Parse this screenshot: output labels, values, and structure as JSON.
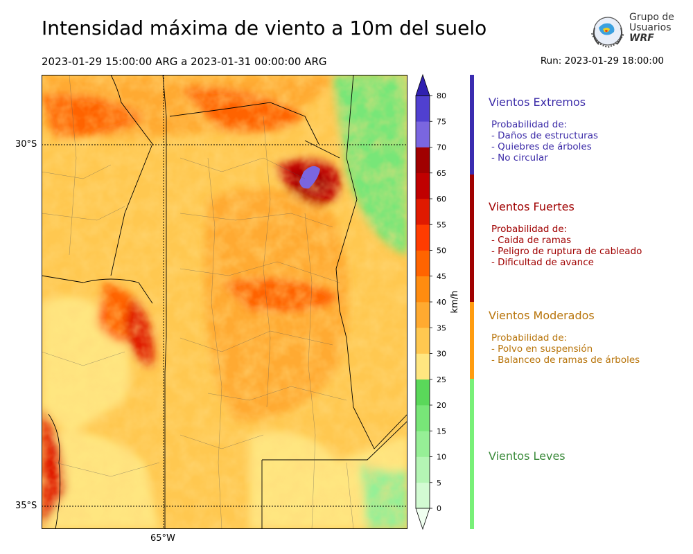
{
  "header": {
    "title": "Intensidad máxima de viento a 10m del suelo",
    "period": "2023-01-29 15:00:00 ARG  a  2023-01-31 00:00:00 ARG",
    "run": "Run: 2023-01-29 18:00:00"
  },
  "logo": {
    "line1": "Grupo de",
    "line2": "Usuarios",
    "line3": "WRF"
  },
  "axes": {
    "lat_labels": [
      "30°S",
      "35°S"
    ],
    "lon_labels": [
      "65°W"
    ]
  },
  "colorbar": {
    "unit": "km/h",
    "ticks": [
      "0",
      "5",
      "10",
      "15",
      "20",
      "25",
      "30",
      "35",
      "40",
      "45",
      "50",
      "55",
      "60",
      "65",
      "70",
      "75",
      "80"
    ],
    "colors": [
      "#f0fff0",
      "#d2fbd2",
      "#b4f5b4",
      "#96ef96",
      "#78e678",
      "#5ad85a",
      "#ffe680",
      "#ffc850",
      "#ffaa30",
      "#ff8c10",
      "#ff6400",
      "#ff3c00",
      "#e01a00",
      "#c00000",
      "#a00000",
      "#7a66e0",
      "#5040d0",
      "#3020b0"
    ]
  },
  "categories": [
    {
      "title": "Vientos Extremos",
      "color": "#3c2ca8",
      "desc": "Probabilidad de:\n- Daños de estructuras\n- Quiebres de árboles\n- No circular"
    },
    {
      "title": "Vientos Fuertes",
      "color": "#a00000",
      "desc": "Probabilidad de:\n- Caida de ramas\n- Peligro de ruptura de cableado\n- Dificultad de avance"
    },
    {
      "title": "Vientos Moderados",
      "color": "#b8740a",
      "desc": "Probabilidad de:\n- Polvo en suspensión\n- Balanceo de ramas de árboles"
    },
    {
      "title": "Vientos Leves",
      "color": "#3a8a3a",
      "desc": ""
    }
  ],
  "category_bar_colors": [
    "#3a2cb0",
    "#a00000",
    "#ff9c10",
    "#78f078"
  ]
}
